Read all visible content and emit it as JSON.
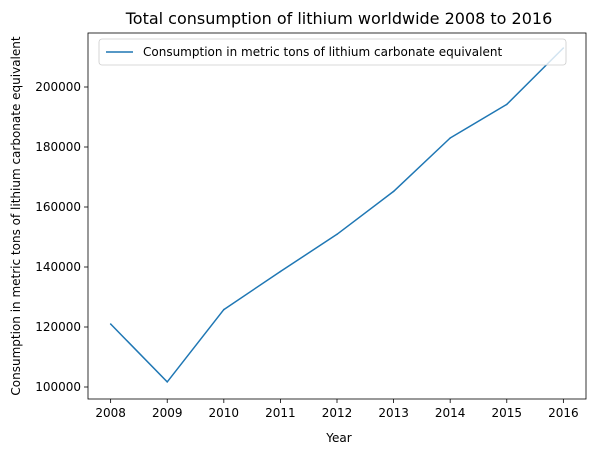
{
  "chart_data": {
    "type": "line",
    "title": "Total consumption of lithium worldwide 2008 to 2016",
    "xlabel": "Year",
    "ylabel": "Consumption in metric tons of lithium carbonate equivalent",
    "x": [
      2008,
      2009,
      2010,
      2011,
      2012,
      2013,
      2014,
      2015,
      2016
    ],
    "x_ticks": [
      "2008",
      "2009",
      "2010",
      "2011",
      "2012",
      "2013",
      "2014",
      "2015",
      "2016"
    ],
    "y_ticks": [
      "100000",
      "120000",
      "140000",
      "160000",
      "180000",
      "200000"
    ],
    "xlim": [
      2007.6,
      2016.4
    ],
    "ylim": [
      96000,
      218000
    ],
    "grid": false,
    "legend_position": "top-left",
    "series": [
      {
        "name": "Consumption in metric tons of lithium carbonate equivalent",
        "color": "#1f77b4",
        "values": [
          121000,
          101700,
          125800,
          138500,
          150900,
          165200,
          183000,
          194200,
          213000
        ]
      }
    ]
  }
}
